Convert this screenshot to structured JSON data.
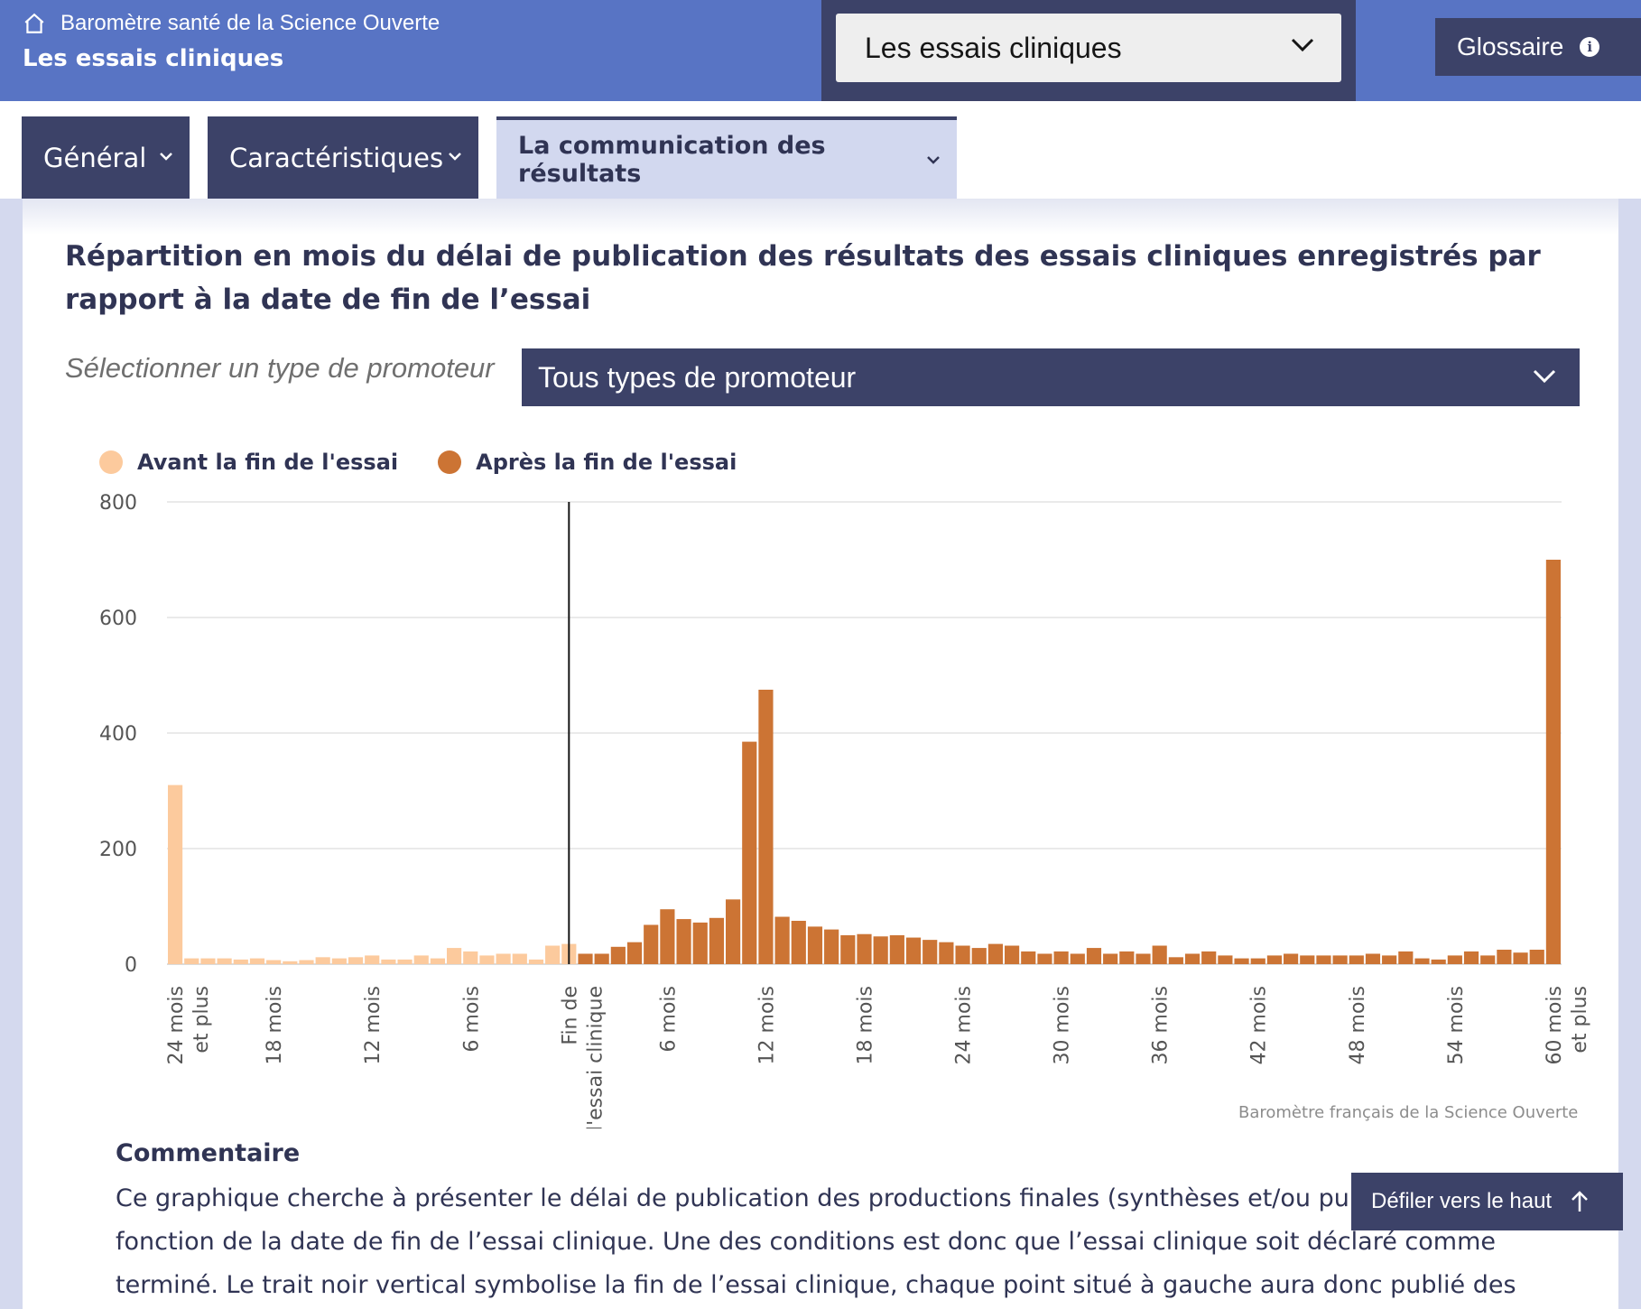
{
  "header": {
    "breadcrumb": "Baromètre santé de la Science Ouverte",
    "title": "Les essais cliniques",
    "select_value": "Les essais cliniques",
    "glossary_label": "Glossaire"
  },
  "tabs": [
    {
      "label": "Général",
      "active": false
    },
    {
      "label": "Caractéristiques",
      "active": false
    },
    {
      "label": "La communication des résultats",
      "active": true
    }
  ],
  "section": {
    "title": "Répartition en mois du délai de publication des résultats des essais cliniques enregistrés par rapport à la date de fin de l’essai",
    "filter_label": "Sélectionner un type de promoteur",
    "filter_value": "Tous types de promoteur",
    "credits": "Baromètre français de la Science Ouverte"
  },
  "colors": {
    "before": "#fcca9d",
    "after": "#cc7434",
    "accent": "#3c4268",
    "header": "#5874c4"
  },
  "chart_data": {
    "type": "bar",
    "series": [
      {
        "name": "Avant la fin de l'essai",
        "color": "#fcca9d",
        "values": [
          310,
          10,
          10,
          10,
          8,
          10,
          7,
          5,
          7,
          12,
          10,
          12,
          15,
          8,
          8,
          15,
          10,
          28,
          22,
          15,
          18,
          18,
          8,
          32,
          35
        ]
      },
      {
        "name": "Après la fin de l'essai",
        "color": "#cc7434",
        "values": [
          18,
          18,
          30,
          38,
          68,
          95,
          78,
          72,
          80,
          112,
          385,
          475,
          82,
          75,
          65,
          60,
          50,
          52,
          48,
          50,
          46,
          42,
          38,
          32,
          28,
          35,
          32,
          22,
          18,
          22,
          18,
          28,
          18,
          22,
          18,
          32,
          12,
          18,
          22,
          15,
          10,
          10,
          15,
          18,
          15,
          15,
          15,
          15,
          18,
          15,
          22,
          10,
          8,
          15,
          22,
          15,
          25,
          20,
          25,
          700
        ]
      }
    ],
    "x_ticks": [
      {
        "index": 0,
        "label": "24 mois et plus"
      },
      {
        "index": 6,
        "label": "18 mois"
      },
      {
        "index": 12,
        "label": "12 mois"
      },
      {
        "index": 18,
        "label": "6 mois"
      },
      {
        "index": 24,
        "label": "Fin de l'essai clinique"
      },
      {
        "index": 30,
        "label": "6 mois"
      },
      {
        "index": 36,
        "label": "12 mois"
      },
      {
        "index": 42,
        "label": "18 mois"
      },
      {
        "index": 48,
        "label": "24 mois"
      },
      {
        "index": 54,
        "label": "30 mois"
      },
      {
        "index": 60,
        "label": "36 mois"
      },
      {
        "index": 66,
        "label": "42 mois"
      },
      {
        "index": 72,
        "label": "48 mois"
      },
      {
        "index": 78,
        "label": "54 mois"
      },
      {
        "index": 84,
        "label": "60 mois et plus"
      }
    ],
    "y_ticks": [
      0,
      200,
      400,
      600,
      800
    ],
    "ylim": [
      0,
      800
    ],
    "reference_line_index": 24,
    "legend_position": "top-left",
    "grid": true
  },
  "comment": {
    "title": "Commentaire",
    "text": "Ce graphique cherche à présenter le délai de publication des productions finales (synthèses et/ou publications) en fonction de la date de fin de l’essai clinique. Une des conditions est donc que l’essai clinique soit déclaré comme terminé. Le trait noir vertical symbolise la fin de l’essai clinique, chaque point situé à gauche aura donc publié des"
  },
  "scroll_button": "Défiler vers le haut"
}
